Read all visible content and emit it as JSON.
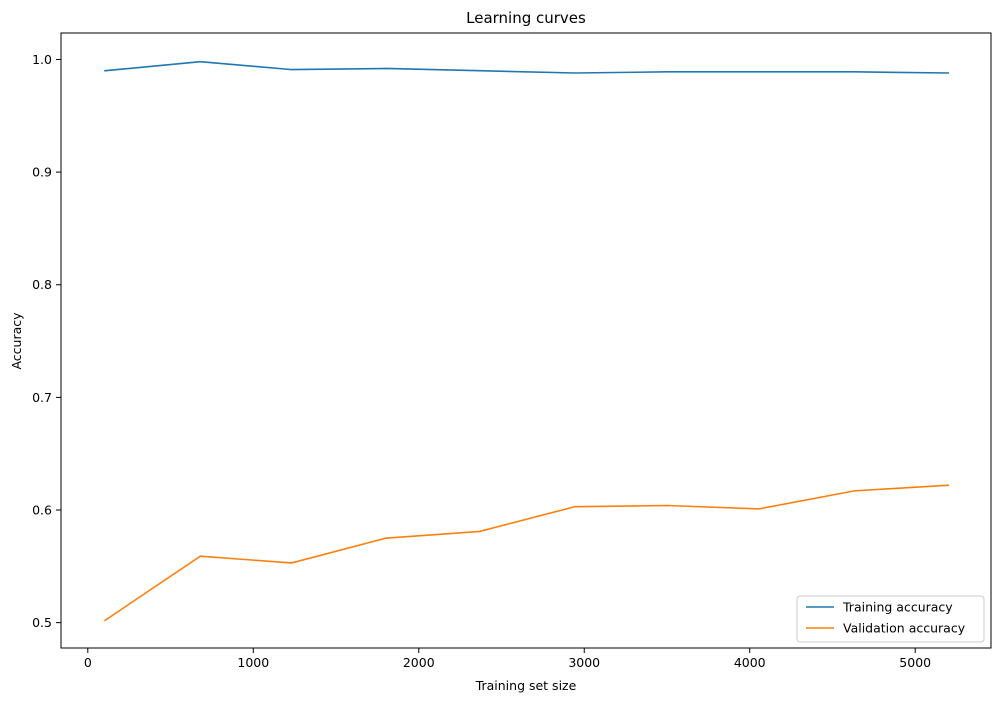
{
  "chart_data": {
    "type": "line",
    "title": "Learning curves",
    "xlabel": "Training set size",
    "ylabel": "Accuracy",
    "xlim": [
      -162,
      5458
    ],
    "ylim": [
      0.4775,
      1.0235
    ],
    "xticks": [
      0,
      1000,
      2000,
      3000,
      4000,
      5000
    ],
    "xtick_labels": [
      "0",
      "1000",
      "2000",
      "3000",
      "4000",
      "5000"
    ],
    "yticks": [
      0.5,
      0.6,
      0.7,
      0.8,
      0.9,
      1.0
    ],
    "ytick_labels": [
      "0.5",
      "0.6",
      "0.7",
      "0.8",
      "0.9",
      "1.0"
    ],
    "grid": false,
    "legend_position": "lower right",
    "x": [
      104,
      680,
      1232,
      1800,
      2368,
      2944,
      3504,
      4056,
      4632,
      5200
    ],
    "series": [
      {
        "name": "Training accuracy",
        "color": "#1f77b4",
        "values": [
          0.99,
          0.998,
          0.991,
          0.992,
          0.99,
          0.988,
          0.989,
          0.989,
          0.989,
          0.988
        ]
      },
      {
        "name": "Validation accuracy",
        "color": "#ff7f0e",
        "values": [
          0.502,
          0.559,
          0.553,
          0.575,
          0.581,
          0.603,
          0.604,
          0.601,
          0.617,
          0.622
        ]
      }
    ]
  }
}
